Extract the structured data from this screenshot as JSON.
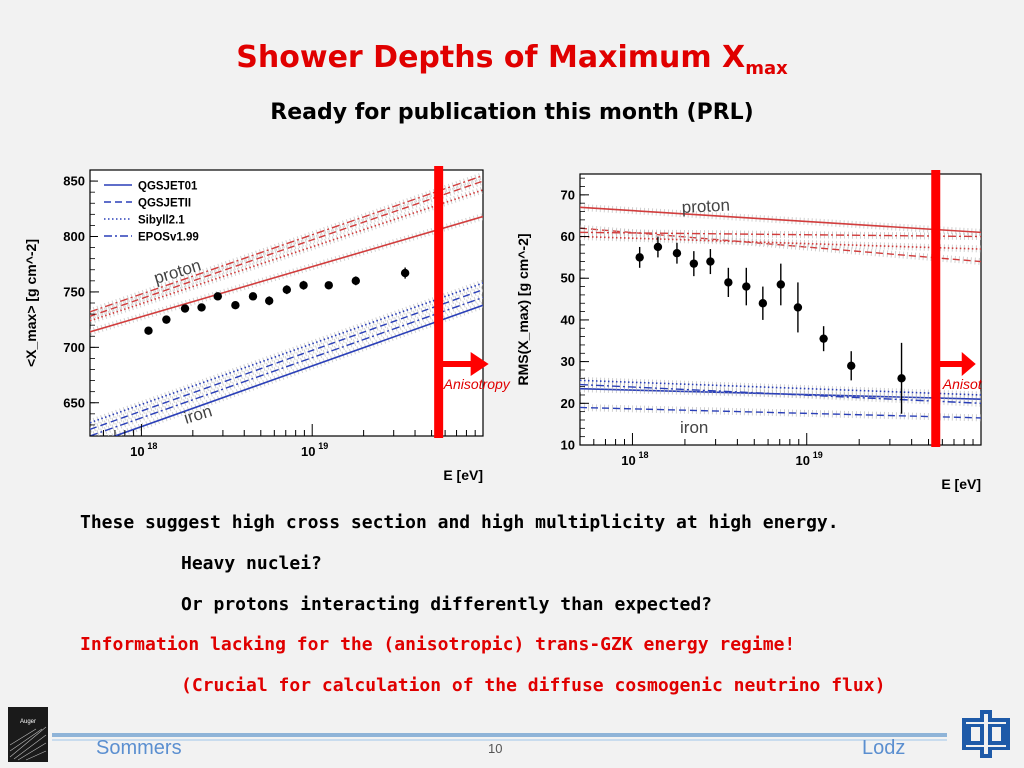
{
  "slide": {
    "title": "Shower Depths of Maximum X",
    "title_sub": "max",
    "subtitle": "Ready for publication this month (PRL)",
    "bullets": [
      {
        "text": "These suggest high cross section and high multiplicity at high energy.",
        "color": "#000000"
      },
      {
        "text": "Heavy nuclei?",
        "color": "#000000"
      },
      {
        "text": "Or protons interacting differently than expected?",
        "color": "#000000"
      },
      {
        "text": "Information lacking for the (anisotropic) trans-GZK energy regime!",
        "color": "#e00000"
      },
      {
        "text": "(Crucial for calculation of the diffuse cosmogenic neutrino flux)",
        "color": "#e00000"
      }
    ],
    "anisotropy_label": "Anisotropy",
    "anisotropy_label_cut": "Anisot",
    "footer": {
      "author": "Sommers",
      "page": "10",
      "location": "Lodz"
    },
    "logos": {
      "left": "Auger",
      "right": "fermilab-logo"
    },
    "accent_color": "#ff0000"
  },
  "chart_data": [
    {
      "type": "line",
      "ylabel": "<X_max> [g cm^-2]",
      "xlabel": "E [eV]",
      "xscale": "log",
      "xlim": [
        5e+17,
        1e+20
      ],
      "ylim": [
        620,
        860
      ],
      "yticks": [
        650,
        700,
        750,
        800,
        850
      ],
      "xticks": [
        {
          "value": 1e+18,
          "label": "10",
          "exp": "18"
        },
        {
          "value": 1e+19,
          "label": "10",
          "exp": "19"
        }
      ],
      "legend": [
        "QGSJET01",
        "QGSJETII",
        "Sibyll2.1",
        "EPOSv1.99"
      ],
      "legend_position": "top-left",
      "annotations": [
        "proton",
        "iron"
      ],
      "anisotropy_cut_E": 5.5e+19,
      "models": {
        "proton": {
          "QGSJET01": [
            [
              5e+17,
              714
            ],
            [
              1e+20,
              818
            ]
          ],
          "QGSJETII": [
            [
              5e+17,
              728
            ],
            [
              1e+20,
              850
            ]
          ],
          "Sibyll2.1": [
            [
              5e+17,
              724
            ],
            [
              1e+20,
              842
            ]
          ],
          "EPOSv1.99": [
            [
              5e+17,
              732
            ],
            [
              1e+20,
              855
            ]
          ]
        },
        "iron": {
          "QGSJET01": [
            [
              5e+17,
              612
            ],
            [
              1e+20,
              738
            ]
          ],
          "QGSJETII": [
            [
              5e+17,
              626
            ],
            [
              1e+20,
              752
            ]
          ],
          "Sibyll2.1": [
            [
              5e+17,
              632
            ],
            [
              1e+20,
              758
            ]
          ],
          "EPOSv1.99": [
            [
              5e+17,
              620
            ],
            [
              1e+20,
              745
            ]
          ]
        }
      },
      "points": [
        {
          "E": 1.1e+18,
          "y": 715,
          "err": 2
        },
        {
          "E": 1.4e+18,
          "y": 725,
          "err": 2
        },
        {
          "E": 1.8e+18,
          "y": 735,
          "err": 2
        },
        {
          "E": 2.25e+18,
          "y": 736,
          "err": 2
        },
        {
          "E": 2.8e+18,
          "y": 746,
          "err": 2
        },
        {
          "E": 3.55e+18,
          "y": 738,
          "err": 2
        },
        {
          "E": 4.5e+18,
          "y": 746,
          "err": 3
        },
        {
          "E": 5.6e+18,
          "y": 742,
          "err": 4
        },
        {
          "E": 7.1e+18,
          "y": 752,
          "err": 4
        },
        {
          "E": 8.9e+18,
          "y": 756,
          "err": 4
        },
        {
          "E": 1.25e+19,
          "y": 756,
          "err": 3
        },
        {
          "E": 1.8e+19,
          "y": 760,
          "err": 4
        },
        {
          "E": 3.5e+19,
          "y": 767,
          "err": 5
        }
      ]
    },
    {
      "type": "line",
      "ylabel": "RMS(X_max) [g cm^-2]",
      "xlabel": "E [eV]",
      "xscale": "log",
      "xlim": [
        5e+17,
        1e+20
      ],
      "ylim": [
        10,
        75
      ],
      "yticks": [
        10,
        20,
        30,
        40,
        50,
        60,
        70
      ],
      "xticks": [
        {
          "value": 1e+18,
          "label": "10",
          "exp": "18"
        },
        {
          "value": 1e+19,
          "label": "10",
          "exp": "19"
        }
      ],
      "annotations": [
        "proton",
        "iron"
      ],
      "anisotropy_cut_E": 5.5e+19,
      "models": {
        "proton": {
          "QGSJET01": [
            [
              5e+17,
              67
            ],
            [
              1e+20,
              61
            ]
          ],
          "QGSJETII": [
            [
              5e+17,
              62
            ],
            [
              1e+20,
              54
            ]
          ],
          "Sibyll2.1": [
            [
              5e+17,
              60
            ],
            [
              1e+20,
              57
            ]
          ],
          "EPOSv1.99": [
            [
              5e+17,
              61
            ],
            [
              1e+20,
              60
            ]
          ]
        },
        "iron": {
          "QGSJET01": [
            [
              5e+17,
              23.5
            ],
            [
              1e+20,
              21
            ]
          ],
          "QGSJETII": [
            [
              5e+17,
              19
            ],
            [
              1e+20,
              16.5
            ]
          ],
          "Sibyll2.1": [
            [
              5e+17,
              25.5
            ],
            [
              1e+20,
              22
            ]
          ],
          "EPOSv1.99": [
            [
              5e+17,
              24.5
            ],
            [
              1e+20,
              20
            ]
          ]
        }
      },
      "points": [
        {
          "E": 1.1e+18,
          "y": 55,
          "err": 2.5
        },
        {
          "E": 1.4e+18,
          "y": 57.5,
          "err": 2.5
        },
        {
          "E": 1.8e+18,
          "y": 56,
          "err": 2.5
        },
        {
          "E": 2.25e+18,
          "y": 53.5,
          "err": 3
        },
        {
          "E": 2.8e+18,
          "y": 54,
          "err": 3
        },
        {
          "E": 3.55e+18,
          "y": 49,
          "err": 3.5
        },
        {
          "E": 4.5e+18,
          "y": 48,
          "err": 4.5
        },
        {
          "E": 5.6e+18,
          "y": 44,
          "err": 4
        },
        {
          "E": 7.1e+18,
          "y": 48.5,
          "err": 5
        },
        {
          "E": 8.9e+18,
          "y": 43,
          "err": 6
        },
        {
          "E": 1.25e+19,
          "y": 35.5,
          "err": 3
        },
        {
          "E": 1.8e+19,
          "y": 29,
          "err": 3.5
        },
        {
          "E": 3.5e+19,
          "y": 26,
          "err": 8.5
        }
      ]
    }
  ]
}
